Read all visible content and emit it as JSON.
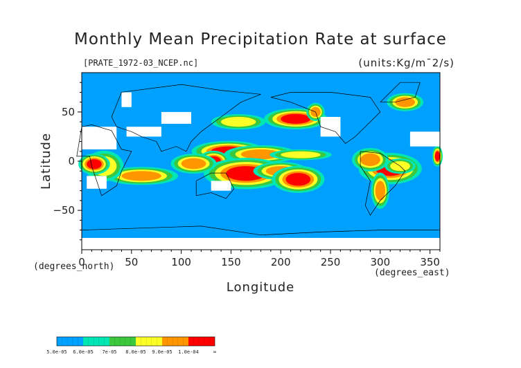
{
  "chart_data": {
    "type": "heatmap",
    "title": "Monthly Mean Precipitation Rate at surface",
    "subtitle": "[PRATE_1972-03_NCEP.nc]",
    "units": "(units:Kg/m¯2/s)",
    "xlabel": "Longitude",
    "ylabel": "Latitude",
    "x_unit_label": "(degrees_east)",
    "y_unit_label": "(degrees_north)",
    "xlim": [
      0,
      360
    ],
    "ylim": [
      -90,
      90
    ],
    "x_ticks": [
      "0",
      "50",
      "100",
      "150",
      "200",
      "250",
      "300",
      "350"
    ],
    "y_ticks": [
      "50",
      "0",
      "−50"
    ],
    "grid": false,
    "colorbar": {
      "levels": [
        "5.0e-05",
        "6.0e-05",
        "7e-05",
        "8.0e-05",
        "9.0e-05",
        "1.0e-04",
        "∞"
      ],
      "colors": [
        "#00a0ff",
        "#00e6b4",
        "#3cc83c",
        "#ffff28",
        "#ff9600",
        "#ff0000"
      ]
    },
    "legend_placement": "bottom-left",
    "cells": [
      {
        "lon": [
          130,
          165
        ],
        "lat": [
          5,
          15
        ],
        "level": 5
      },
      {
        "lon": [
          160,
          200
        ],
        "lat": [
          2,
          12
        ],
        "level": 4
      },
      {
        "lon": [
          200,
          240
        ],
        "lat": [
          3,
          10
        ],
        "level": 3
      },
      {
        "lon": [
          125,
          140
        ],
        "lat": [
          -5,
          5
        ],
        "level": 5
      },
      {
        "lon": [
          145,
          185
        ],
        "lat": [
          -20,
          -5
        ],
        "level": 5
      },
      {
        "lon": [
          185,
          215
        ],
        "lat": [
          -15,
          -5
        ],
        "level": 4
      },
      {
        "lon": [
          205,
          230
        ],
        "lat": [
          -25,
          -12
        ],
        "level": 5
      },
      {
        "lon": [
          100,
          125
        ],
        "lat": [
          -8,
          3
        ],
        "level": 4
      },
      {
        "lon": [
          40,
          80
        ],
        "lat": [
          -20,
          -10
        ],
        "level": 4
      },
      {
        "lon": [
          10,
          35
        ],
        "lat": [
          -15,
          5
        ],
        "level": 3
      },
      {
        "lon": [
          295,
          325
        ],
        "lat": [
          -15,
          0
        ],
        "level": 5
      },
      {
        "lon": [
          280,
          300
        ],
        "lat": [
          -5,
          8
        ],
        "level": 4
      },
      {
        "lon": [
          200,
          230
        ],
        "lat": [
          38,
          48
        ],
        "level": 5
      },
      {
        "lon": [
          140,
          175
        ],
        "lat": [
          35,
          45
        ],
        "level": 3
      },
      {
        "lon": [
          315,
          335
        ],
        "lat": [
          55,
          65
        ],
        "level": 4
      },
      {
        "lon": [
          230,
          240
        ],
        "lat": [
          45,
          55
        ],
        "level": 4
      },
      {
        "lon": [
          295,
          305
        ],
        "lat": [
          -40,
          -20
        ],
        "level": 4
      },
      {
        "lon": [
          5,
          20
        ],
        "lat": [
          -8,
          2
        ],
        "level": 5
      },
      {
        "lon": [
          355,
          360
        ],
        "lat": [
          0,
          10
        ],
        "level": 5
      },
      {
        "lon": [
          310,
          330
        ],
        "lat": [
          -10,
          0
        ],
        "level": 3
      }
    ],
    "missing": [
      {
        "lon": [
          0,
          35
        ],
        "lat": [
          12,
          35
        ]
      },
      {
        "lon": [
          40,
          50
        ],
        "lat": [
          55,
          70
        ]
      },
      {
        "lon": [
          80,
          110
        ],
        "lat": [
          38,
          50
        ]
      },
      {
        "lon": [
          45,
          80
        ],
        "lat": [
          25,
          35
        ]
      },
      {
        "lon": [
          240,
          260
        ],
        "lat": [
          25,
          45
        ]
      },
      {
        "lon": [
          0,
          360
        ],
        "lat": [
          -90,
          -78
        ]
      },
      {
        "lon": [
          330,
          360
        ],
        "lat": [
          15,
          30
        ]
      },
      {
        "lon": [
          130,
          150
        ],
        "lat": [
          -30,
          -20
        ]
      },
      {
        "lon": [
          5,
          25
        ],
        "lat": [
          -28,
          -15
        ]
      }
    ]
  }
}
